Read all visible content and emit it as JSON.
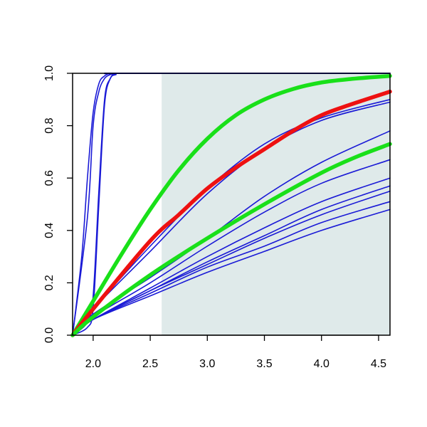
{
  "chart_data": {
    "type": "line",
    "title": "",
    "xlabel": "",
    "ylabel": "",
    "xlim": [
      1.82,
      4.6
    ],
    "ylim": [
      0,
      1
    ],
    "x_ticks": [
      2.0,
      2.5,
      3.0,
      3.5,
      4.0,
      4.5
    ],
    "x_tick_labels": [
      "2.0",
      "2.5",
      "3.0",
      "3.5",
      "4.0",
      "4.5"
    ],
    "y_ticks": [
      0.0,
      0.2,
      0.4,
      0.6,
      0.8,
      1.0
    ],
    "y_tick_labels": [
      "0.0",
      "0.2",
      "0.4",
      "0.6",
      "0.8",
      "1.0"
    ],
    "grid": false,
    "legend": "none",
    "shaded_region": {
      "x_from": 2.6,
      "x_to": 4.6,
      "y_from": 0,
      "y_to": 1,
      "color": "#dfeaea"
    },
    "colors": {
      "blue": "#1a1ad6",
      "red": "#ee1111",
      "green": "#19e019",
      "axis": "#000000"
    },
    "series": [
      {
        "color": "blue",
        "width": "thin",
        "x": [
          1.82,
          1.95,
          2.0,
          2.05,
          2.1,
          2.15,
          2.2,
          2.3,
          4.6
        ],
        "y": [
          0.0,
          0.45,
          0.8,
          0.93,
          0.98,
          0.995,
          1.0,
          1.0,
          1.0
        ]
      },
      {
        "color": "blue",
        "width": "thin",
        "x": [
          1.82,
          1.9,
          1.95,
          2.0,
          2.05,
          2.1,
          2.15,
          2.2,
          2.3,
          4.6
        ],
        "y": [
          0.0,
          0.3,
          0.6,
          0.85,
          0.96,
          0.99,
          1.0,
          1.0,
          1.0,
          1.0
        ]
      },
      {
        "color": "blue",
        "width": "thin",
        "x": [
          1.82,
          1.95,
          2.0,
          2.05,
          2.1,
          2.15,
          2.2,
          2.3,
          4.6
        ],
        "y": [
          0.0,
          0.05,
          0.15,
          0.55,
          0.9,
          0.98,
          1.0,
          1.0,
          1.0
        ]
      },
      {
        "color": "blue",
        "width": "thin",
        "x": [
          1.82,
          1.95,
          2.0,
          2.05,
          2.1,
          2.15,
          2.2,
          2.3,
          4.6
        ],
        "y": [
          0.0,
          0.03,
          0.1,
          0.5,
          0.88,
          0.98,
          0.995,
          1.0,
          1.0
        ]
      },
      {
        "color": "blue",
        "width": "thin",
        "x": [
          1.82,
          2.0,
          2.5,
          3.0,
          3.5,
          4.0,
          4.6
        ],
        "y": [
          0.0,
          0.1,
          0.34,
          0.56,
          0.73,
          0.83,
          0.9
        ]
      },
      {
        "color": "blue",
        "width": "thin",
        "x": [
          1.82,
          2.0,
          2.5,
          3.0,
          3.5,
          4.0,
          4.6
        ],
        "y": [
          0.0,
          0.1,
          0.32,
          0.54,
          0.71,
          0.82,
          0.89
        ]
      },
      {
        "color": "blue",
        "width": "thin",
        "x": [
          1.82,
          2.0,
          2.5,
          3.0,
          3.5,
          4.0,
          4.6
        ],
        "y": [
          0.0,
          0.08,
          0.22,
          0.37,
          0.53,
          0.66,
          0.78
        ]
      },
      {
        "color": "blue",
        "width": "thin",
        "x": [
          1.82,
          2.0,
          2.5,
          3.0,
          3.5,
          4.0,
          4.6
        ],
        "y": [
          0.0,
          0.07,
          0.2,
          0.34,
          0.47,
          0.58,
          0.67
        ]
      },
      {
        "color": "blue",
        "width": "thin",
        "x": [
          1.82,
          2.0,
          2.5,
          3.0,
          3.5,
          4.0,
          4.6
        ],
        "y": [
          0.0,
          0.06,
          0.18,
          0.3,
          0.41,
          0.51,
          0.6
        ]
      },
      {
        "color": "blue",
        "width": "thin",
        "x": [
          1.82,
          2.0,
          2.5,
          3.0,
          3.5,
          4.0,
          4.6
        ],
        "y": [
          0.0,
          0.06,
          0.17,
          0.28,
          0.38,
          0.48,
          0.57
        ]
      },
      {
        "color": "blue",
        "width": "thin",
        "x": [
          1.82,
          2.0,
          2.5,
          3.0,
          3.5,
          4.0,
          4.6
        ],
        "y": [
          0.0,
          0.06,
          0.17,
          0.27,
          0.37,
          0.46,
          0.55
        ]
      },
      {
        "color": "blue",
        "width": "thin",
        "x": [
          1.82,
          2.0,
          2.5,
          3.0,
          3.5,
          4.0,
          4.6
        ],
        "y": [
          0.0,
          0.06,
          0.16,
          0.26,
          0.34,
          0.43,
          0.51
        ]
      },
      {
        "color": "blue",
        "width": "thin",
        "x": [
          1.82,
          2.0,
          2.5,
          3.0,
          3.5,
          4.0,
          4.6
        ],
        "y": [
          0.0,
          0.06,
          0.15,
          0.24,
          0.32,
          0.4,
          0.48
        ]
      },
      {
        "color": "green",
        "width": "thick",
        "x": [
          1.82,
          2.0,
          2.25,
          2.5,
          2.75,
          3.0,
          3.25,
          3.5,
          3.75,
          4.0,
          4.25,
          4.6
        ],
        "y": [
          0.0,
          0.13,
          0.31,
          0.48,
          0.63,
          0.75,
          0.84,
          0.9,
          0.94,
          0.965,
          0.978,
          0.99
        ]
      },
      {
        "color": "red",
        "width": "thick",
        "x": [
          1.82,
          2.0,
          2.5,
          2.75,
          3.0,
          3.25,
          3.5,
          3.75,
          4.0,
          4.25,
          4.6
        ],
        "y": [
          0.0,
          0.1,
          0.36,
          0.46,
          0.56,
          0.64,
          0.71,
          0.78,
          0.84,
          0.88,
          0.93
        ]
      },
      {
        "color": "green",
        "width": "thick",
        "x": [
          1.82,
          2.0,
          2.5,
          3.0,
          3.5,
          4.0,
          4.3,
          4.6
        ],
        "y": [
          0.0,
          0.07,
          0.23,
          0.37,
          0.5,
          0.62,
          0.68,
          0.73
        ]
      }
    ]
  }
}
